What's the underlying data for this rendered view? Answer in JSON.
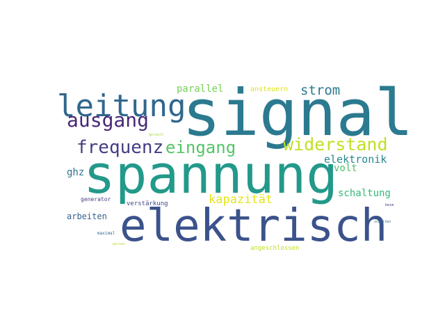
{
  "words": [
    {
      "id": "signal",
      "text": "signal",
      "color": "#2b7a8f"
    },
    {
      "id": "spannung",
      "text": "spannung",
      "color": "#23998a"
    },
    {
      "id": "elektrisch",
      "text": "elektrisch",
      "color": "#3b528b"
    },
    {
      "id": "leitung",
      "text": "leitung",
      "color": "#30678d"
    },
    {
      "id": "ausgang",
      "text": "ausgang",
      "color": "#482878"
    },
    {
      "id": "frequenz",
      "text": "frequenz",
      "color": "#433e85"
    },
    {
      "id": "eingang",
      "text": "eingang",
      "color": "#54c568"
    },
    {
      "id": "widerstand",
      "text": "widerstand",
      "color": "#c2df23"
    },
    {
      "id": "strom",
      "text": "strom",
      "color": "#2a788e"
    },
    {
      "id": "parallel",
      "text": "parallel",
      "color": "#75d054"
    },
    {
      "id": "ansteuern",
      "text": "ansteuern",
      "color": "#dde318"
    },
    {
      "id": "elektronik",
      "text": "elektronik",
      "color": "#24878e"
    },
    {
      "id": "volt",
      "text": "volt",
      "color": "#4ac16d"
    },
    {
      "id": "kapazitaet",
      "text": "kapazität",
      "color": "#e5e419"
    },
    {
      "id": "schaltung",
      "text": "schaltung",
      "color": "#35b779"
    },
    {
      "id": "ghz",
      "text": "ghz",
      "color": "#2c728e"
    },
    {
      "id": "arbeiten",
      "text": "arbeiten",
      "color": "#355f8d"
    },
    {
      "id": "generator",
      "text": "generator",
      "color": "#443a83"
    },
    {
      "id": "verstaerkung",
      "text": "verstärkung",
      "color": "#3e4989"
    },
    {
      "id": "maximal",
      "text": "maximal",
      "color": "#31688e"
    },
    {
      "id": "angeschlossen",
      "text": "angeschlossen",
      "color": "#bddf26"
    },
    {
      "id": "gerasch",
      "text": "gerasch",
      "color": "#a0da39"
    },
    {
      "id": "parsen",
      "text": "parsen",
      "color": "#b5de2b"
    },
    {
      "id": "beim",
      "text": "beim",
      "color": "#46327e"
    },
    {
      "id": "schalten",
      "text": "schalten",
      "color": "#31688e"
    }
  ]
}
